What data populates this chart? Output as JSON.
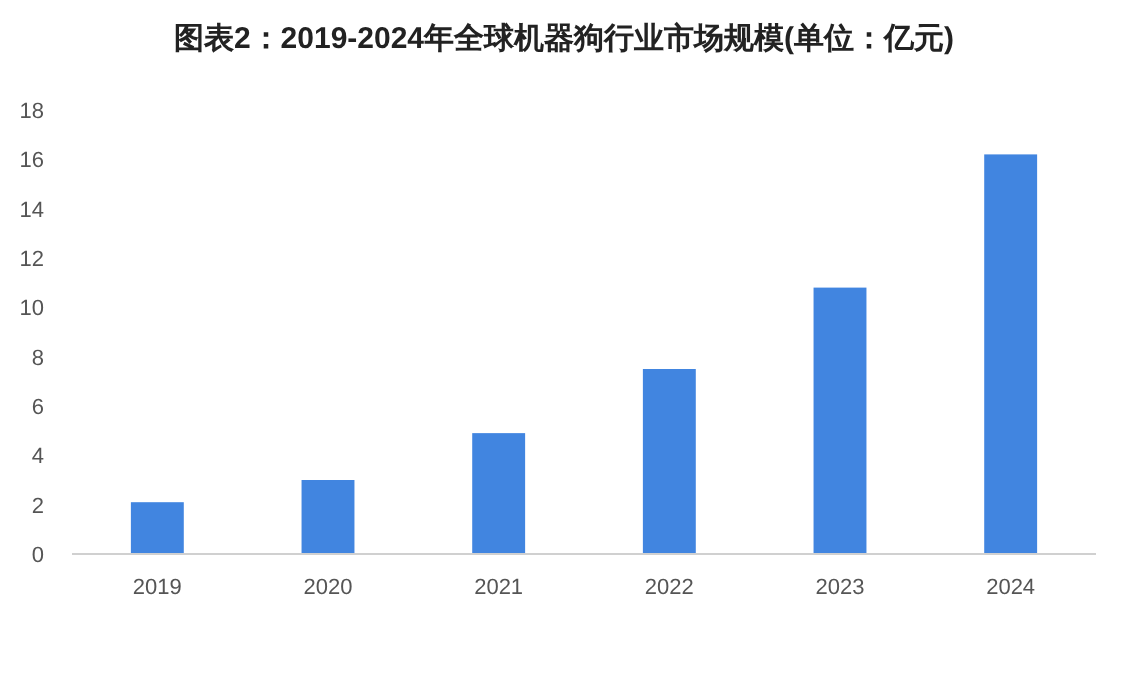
{
  "chart_data": {
    "type": "bar",
    "title": "图表2：2019-2024年全球机器狗行业市场规模(单位：亿元)",
    "categories": [
      "2019",
      "2020",
      "2021",
      "2022",
      "2023",
      "2024"
    ],
    "values": [
      2.1,
      3.0,
      4.9,
      7.5,
      10.8,
      16.2
    ],
    "color": "#4185e0",
    "ylim": [
      0,
      18
    ],
    "yticks": [
      0,
      2,
      4,
      6,
      8,
      10,
      12,
      14,
      16,
      18
    ],
    "grid": false
  }
}
